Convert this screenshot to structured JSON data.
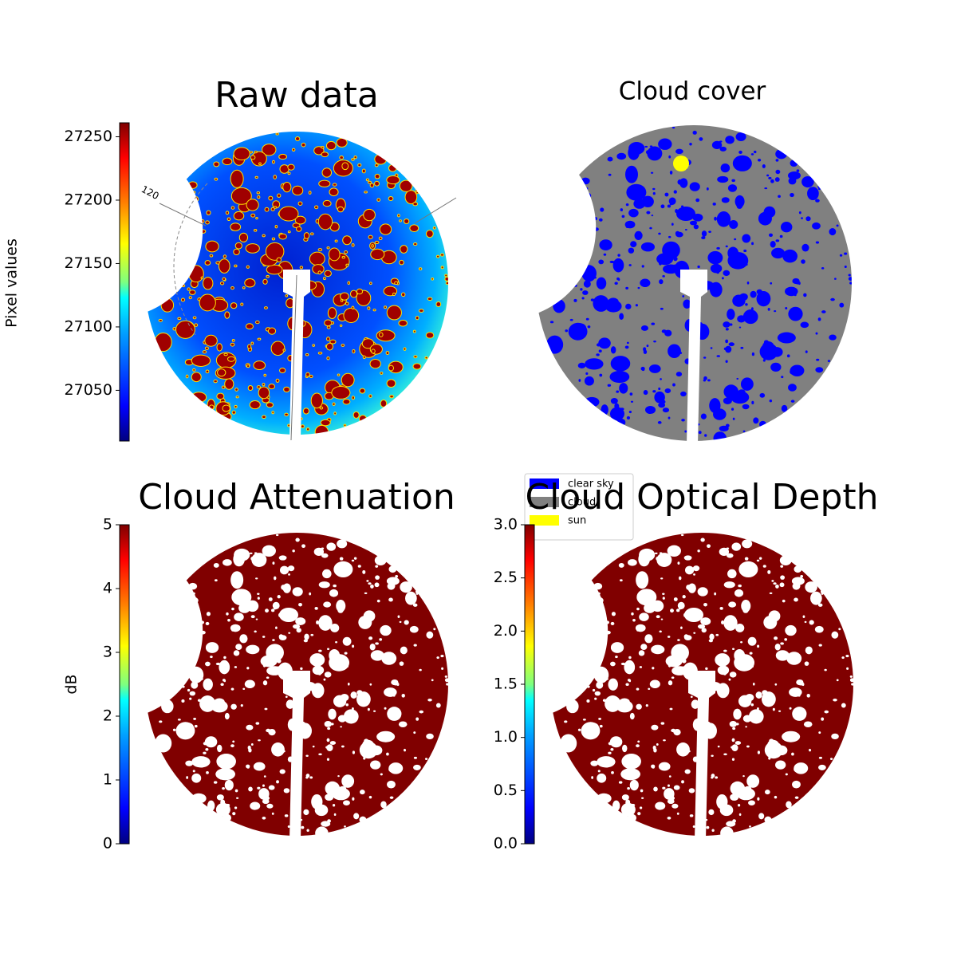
{
  "chart_data": [
    {
      "type": "image",
      "title": "Raw data",
      "colormap": "jet",
      "colorbar": {
        "label": "Pixel values",
        "ylim": [
          27010,
          27261
        ],
        "yticks": [
          27050,
          27100,
          27150,
          27200,
          27250
        ]
      },
      "annotations": [
        "120"
      ]
    },
    {
      "type": "image",
      "title": "Cloud cover",
      "legend": {
        "loc": "lower left",
        "entries": [
          {
            "name": "clear sky",
            "color": "#0000ff"
          },
          {
            "name": "cloud",
            "color": "#808080"
          },
          {
            "name": "sun",
            "color": "#ffff00"
          }
        ]
      }
    },
    {
      "type": "image",
      "title": "Cloud Attenuation",
      "colormap": "jet",
      "colorbar": {
        "label": "dB",
        "ylim": [
          0,
          5
        ],
        "yticks": [
          0,
          1,
          2,
          3,
          4,
          5
        ]
      }
    },
    {
      "type": "image",
      "title": "Cloud Optical Depth",
      "colormap": "jet",
      "colorbar": {
        "ylim": [
          0,
          3
        ],
        "yticks": [
          {
            "value": 0,
            "label": "0.0"
          },
          {
            "value": 0.5,
            "label": "0.5"
          },
          {
            "value": 1,
            "label": "1.0"
          },
          {
            "value": 1.5,
            "label": "1.5"
          },
          {
            "value": 2,
            "label": "2.0"
          },
          {
            "value": 2.5,
            "label": "2.5"
          },
          {
            "value": 3,
            "label": "3.0"
          }
        ]
      }
    }
  ]
}
